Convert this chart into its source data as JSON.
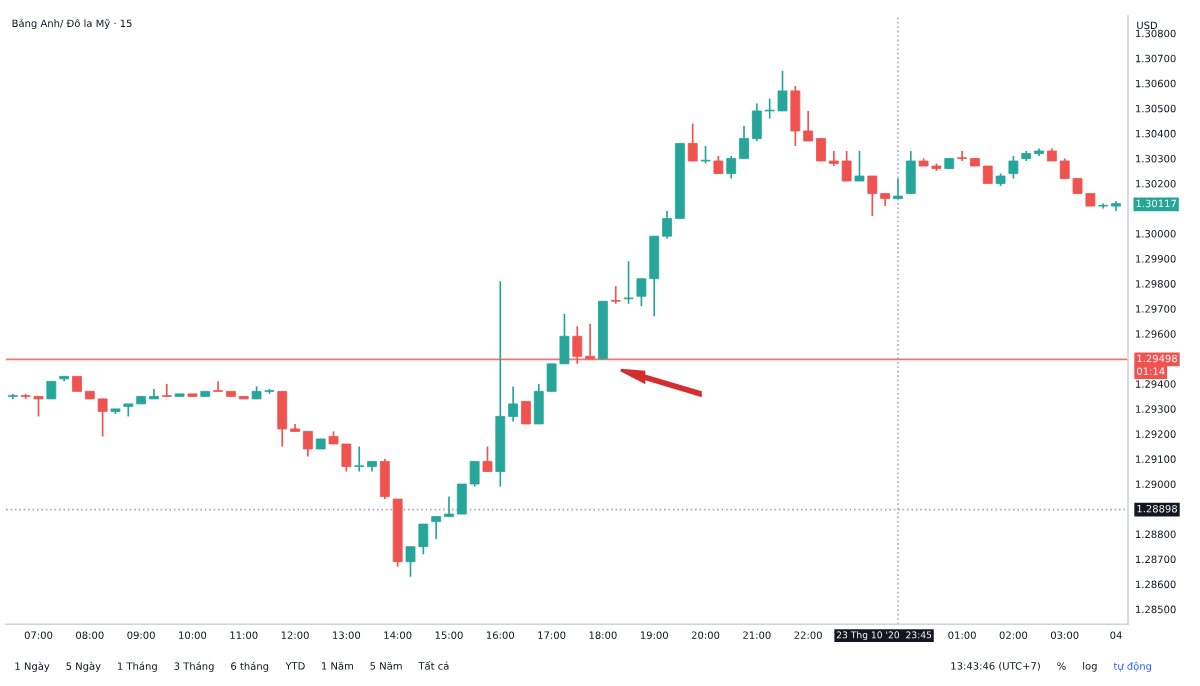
{
  "chart_data": {
    "type": "candlestick",
    "title": "Bảng Anh/ Đô la Mỹ · 15",
    "x": [
      "2020-10-23T06:30",
      "2020-10-23T06:45",
      "2020-10-23T07:00",
      "2020-10-23T07:15",
      "2020-10-23T07:30",
      "2020-10-23T07:45",
      "2020-10-23T08:00",
      "2020-10-23T08:15",
      "2020-10-23T08:30",
      "2020-10-23T08:45",
      "2020-10-23T09:00",
      "2020-10-23T09:15",
      "2020-10-23T09:30",
      "2020-10-23T09:45",
      "2020-10-23T10:00",
      "2020-10-23T10:15",
      "2020-10-23T10:30",
      "2020-10-23T10:45",
      "2020-10-23T11:00",
      "2020-10-23T11:15",
      "2020-10-23T11:30",
      "2020-10-23T11:45",
      "2020-10-23T12:00",
      "2020-10-23T12:15",
      "2020-10-23T12:30",
      "2020-10-23T12:45",
      "2020-10-23T13:00",
      "2020-10-23T13:15",
      "2020-10-23T13:30",
      "2020-10-23T13:45",
      "2020-10-23T14:00",
      "2020-10-23T14:15",
      "2020-10-23T14:30",
      "2020-10-23T14:45",
      "2020-10-23T15:00",
      "2020-10-23T15:15",
      "2020-10-23T15:30",
      "2020-10-23T15:45",
      "2020-10-23T16:00",
      "2020-10-23T16:15",
      "2020-10-23T16:30",
      "2020-10-23T16:45",
      "2020-10-23T17:00",
      "2020-10-23T17:15",
      "2020-10-23T17:30",
      "2020-10-23T17:45",
      "2020-10-23T18:00",
      "2020-10-23T18:15",
      "2020-10-23T18:30",
      "2020-10-23T18:45",
      "2020-10-23T19:00",
      "2020-10-23T19:15",
      "2020-10-23T19:30",
      "2020-10-23T19:45",
      "2020-10-23T20:00",
      "2020-10-23T20:15",
      "2020-10-23T20:30",
      "2020-10-23T20:45",
      "2020-10-23T21:00",
      "2020-10-23T21:15",
      "2020-10-23T21:30",
      "2020-10-23T21:45",
      "2020-10-23T22:00",
      "2020-10-23T22:15",
      "2020-10-23T22:30",
      "2020-10-23T22:45",
      "2020-10-23T23:00",
      "2020-10-23T23:15",
      "2020-10-23T23:30",
      "2020-10-23T23:45",
      "2020-10-24T00:00",
      "2020-10-24T00:15",
      "2020-10-24T00:30",
      "2020-10-24T00:45",
      "2020-10-24T01:00",
      "2020-10-24T01:15",
      "2020-10-24T01:30",
      "2020-10-24T01:45",
      "2020-10-24T02:00",
      "2020-10-24T02:15",
      "2020-10-24T02:30",
      "2020-10-24T02:45",
      "2020-10-24T03:00",
      "2020-10-24T03:15",
      "2020-10-24T03:30",
      "2020-10-24T03:45",
      "2020-10-24T04:00"
    ],
    "ohlc": [
      [
        1.2935,
        1.2936,
        1.2934,
        1.2935
      ],
      [
        1.2935,
        1.2936,
        1.2934,
        1.2935
      ],
      [
        1.2935,
        1.2935,
        1.2927,
        1.2934
      ],
      [
        1.2934,
        1.2941,
        1.2934,
        1.2941
      ],
      [
        1.2942,
        1.2943,
        1.2941,
        1.2943
      ],
      [
        1.2943,
        1.2943,
        1.2937,
        1.2937
      ],
      [
        1.2937,
        1.2937,
        1.2934,
        1.2934
      ],
      [
        1.2934,
        1.2934,
        1.2919,
        1.2929
      ],
      [
        1.2929,
        1.293,
        1.2928,
        1.293
      ],
      [
        1.2931,
        1.2932,
        1.2927,
        1.2932
      ],
      [
        1.2932,
        1.2935,
        1.2932,
        1.2935
      ],
      [
        1.2934,
        1.2938,
        1.2934,
        1.2935
      ],
      [
        1.2935,
        1.294,
        1.2935,
        1.2935
      ],
      [
        1.2935,
        1.2936,
        1.2935,
        1.2936
      ],
      [
        1.2936,
        1.2936,
        1.2935,
        1.2935
      ],
      [
        1.2935,
        1.2937,
        1.2935,
        1.2937
      ],
      [
        1.2937,
        1.2941,
        1.2937,
        1.2937
      ],
      [
        1.2937,
        1.2937,
        1.2935,
        1.2935
      ],
      [
        1.2935,
        1.2935,
        1.2934,
        1.2934
      ],
      [
        1.2934,
        1.2939,
        1.2934,
        1.2937
      ],
      [
        1.2937,
        1.2938,
        1.2936,
        1.2937
      ],
      [
        1.2937,
        1.2937,
        1.2915,
        1.2922
      ],
      [
        1.2922,
        1.2924,
        1.2921,
        1.2921
      ],
      [
        1.2921,
        1.2921,
        1.2911,
        1.2914
      ],
      [
        1.2914,
        1.2918,
        1.2914,
        1.2918
      ],
      [
        1.2919,
        1.2921,
        1.2916,
        1.2916
      ],
      [
        1.2916,
        1.2916,
        1.2905,
        1.2907
      ],
      [
        1.2907,
        1.2915,
        1.2905,
        1.2907
      ],
      [
        1.2907,
        1.2909,
        1.2905,
        1.2909
      ],
      [
        1.2909,
        1.291,
        1.2894,
        1.2895
      ],
      [
        1.2894,
        1.2894,
        1.2867,
        1.2869
      ],
      [
        1.2869,
        1.2875,
        1.2863,
        1.2875
      ],
      [
        1.2875,
        1.2884,
        1.2872,
        1.2884
      ],
      [
        1.2885,
        1.2887,
        1.2878,
        1.2887
      ],
      [
        1.2887,
        1.2895,
        1.2887,
        1.2888
      ],
      [
        1.2888,
        1.29,
        1.2888,
        1.29
      ],
      [
        1.29,
        1.2909,
        1.2899,
        1.2909
      ],
      [
        1.2909,
        1.2915,
        1.2905,
        1.2905
      ],
      [
        1.2905,
        1.2981,
        1.2899,
        1.2927
      ],
      [
        1.2927,
        1.2939,
        1.2925,
        1.2932
      ],
      [
        1.2933,
        1.2933,
        1.2924,
        1.2924
      ],
      [
        1.2924,
        1.294,
        1.2924,
        1.2937
      ],
      [
        1.2937,
        1.2948,
        1.2937,
        1.2948
      ],
      [
        1.2948,
        1.2968,
        1.2948,
        1.2959
      ],
      [
        1.2959,
        1.2963,
        1.2948,
        1.2951
      ],
      [
        1.2951,
        1.2964,
        1.295,
        1.295
      ],
      [
        1.295,
        1.2973,
        1.295,
        1.2973
      ],
      [
        1.2973,
        1.2979,
        1.2972,
        1.2973
      ],
      [
        1.2974,
        1.2989,
        1.2972,
        1.2974
      ],
      [
        1.2975,
        1.2982,
        1.2971,
        1.2982
      ],
      [
        1.2982,
        1.2999,
        1.2967,
        1.2999
      ],
      [
        1.2999,
        1.3009,
        1.2998,
        1.3006
      ],
      [
        1.3006,
        1.3036,
        1.3006,
        1.3036
      ],
      [
        1.3036,
        1.3044,
        1.3029,
        1.3029
      ],
      [
        1.3029,
        1.3035,
        1.3028,
        1.3029
      ],
      [
        1.3029,
        1.3031,
        1.3024,
        1.3024
      ],
      [
        1.3024,
        1.3031,
        1.3022,
        1.303
      ],
      [
        1.303,
        1.3043,
        1.303,
        1.3038
      ],
      [
        1.3038,
        1.3052,
        1.3037,
        1.3049
      ],
      [
        1.3049,
        1.3054,
        1.3046,
        1.3049
      ],
      [
        1.3049,
        1.3065,
        1.3049,
        1.3057
      ],
      [
        1.3057,
        1.3059,
        1.3035,
        1.3041
      ],
      [
        1.3041,
        1.3049,
        1.3037,
        1.3037
      ],
      [
        1.3038,
        1.3038,
        1.3029,
        1.3029
      ],
      [
        1.3029,
        1.3033,
        1.3027,
        1.3028
      ],
      [
        1.3029,
        1.3033,
        1.3021,
        1.3021
      ],
      [
        1.3021,
        1.3033,
        1.3021,
        1.3023
      ],
      [
        1.3023,
        1.3023,
        1.3007,
        1.3016
      ],
      [
        1.3016,
        1.3016,
        1.3011,
        1.3014
      ],
      [
        1.3014,
        1.3022,
        1.3014,
        1.3015
      ],
      [
        1.3016,
        1.3033,
        1.3016,
        1.3029
      ],
      [
        1.3029,
        1.303,
        1.3027,
        1.3027
      ],
      [
        1.3027,
        1.3028,
        1.3025,
        1.3026
      ],
      [
        1.3026,
        1.303,
        1.3026,
        1.303
      ],
      [
        1.303,
        1.3033,
        1.3029,
        1.303
      ],
      [
        1.303,
        1.303,
        1.3027,
        1.3027
      ],
      [
        1.3027,
        1.3027,
        1.302,
        1.302
      ],
      [
        1.302,
        1.3024,
        1.3019,
        1.3023
      ],
      [
        1.3024,
        1.3031,
        1.3022,
        1.3029
      ],
      [
        1.303,
        1.3033,
        1.3029,
        1.3032
      ],
      [
        1.3032,
        1.3034,
        1.3031,
        1.3033
      ],
      [
        1.3033,
        1.3034,
        1.3029,
        1.3029
      ],
      [
        1.3029,
        1.303,
        1.3022,
        1.3022
      ],
      [
        1.3022,
        1.3022,
        1.3016,
        1.3016
      ],
      [
        1.3016,
        1.3016,
        1.3011,
        1.3011
      ],
      [
        1.3011,
        1.3012,
        1.301,
        1.3011
      ],
      [
        1.3011,
        1.3013,
        1.3009,
        1.3012
      ]
    ],
    "colors": [
      "#26a69a",
      "#ef5350",
      "#ef5350",
      "#26a69a",
      "#26a69a",
      "#ef5350",
      "#ef5350",
      "#ef5350",
      "#26a69a",
      "#26a69a",
      "#26a69a",
      "#26a69a",
      "#ef5350",
      "#26a69a",
      "#ef5350",
      "#26a69a",
      "#ef5350",
      "#ef5350",
      "#ef5350",
      "#26a69a",
      "#26a69a",
      "#ef5350",
      "#ef5350",
      "#ef5350",
      "#26a69a",
      "#ef5350",
      "#ef5350",
      "#26a69a",
      "#26a69a",
      "#ef5350",
      "#ef5350",
      "#26a69a",
      "#26a69a",
      "#26a69a",
      "#26a69a",
      "#26a69a",
      "#26a69a",
      "#ef5350",
      "#26a69a",
      "#26a69a",
      "#ef5350",
      "#26a69a",
      "#26a69a",
      "#26a69a",
      "#ef5350",
      "#ef5350",
      "#26a69a",
      "#ef5350",
      "#26a69a",
      "#26a69a",
      "#26a69a",
      "#26a69a",
      "#26a69a",
      "#ef5350",
      "#26a69a",
      "#ef5350",
      "#26a69a",
      "#26a69a",
      "#26a69a",
      "#26a69a",
      "#26a69a",
      "#ef5350",
      "#ef5350",
      "#ef5350",
      "#ef5350",
      "#ef5350",
      "#26a69a",
      "#ef5350",
      "#ef5350",
      "#26a69a",
      "#26a69a",
      "#ef5350",
      "#ef5350",
      "#26a69a",
      "#ef5350",
      "#ef5350",
      "#ef5350",
      "#26a69a",
      "#26a69a",
      "#26a69a",
      "#26a69a",
      "#ef5350",
      "#ef5350",
      "#ef5350",
      "#ef5350",
      "#26a69a",
      "#26a69a"
    ],
    "xlim": [
      "2020-10-23T06:22",
      "2020-10-24T04:14"
    ],
    "xticks": [
      {
        "value": "2020-10-23T07:00",
        "label": "07:00"
      },
      {
        "value": "2020-10-23T08:00",
        "label": "08:00"
      },
      {
        "value": "2020-10-23T09:00",
        "label": "09:00"
      },
      {
        "value": "2020-10-23T10:00",
        "label": "10:00"
      },
      {
        "value": "2020-10-23T11:00",
        "label": "11:00"
      },
      {
        "value": "2020-10-23T12:00",
        "label": "12:00"
      },
      {
        "value": "2020-10-23T13:00",
        "label": "13:00"
      },
      {
        "value": "2020-10-23T14:00",
        "label": "14:00"
      },
      {
        "value": "2020-10-23T15:00",
        "label": "15:00"
      },
      {
        "value": "2020-10-23T16:00",
        "label": "16:00"
      },
      {
        "value": "2020-10-23T17:00",
        "label": "17:00"
      },
      {
        "value": "2020-10-23T18:00",
        "label": "18:00"
      },
      {
        "value": "2020-10-23T19:00",
        "label": "19:00"
      },
      {
        "value": "2020-10-23T20:00",
        "label": "20:00"
      },
      {
        "value": "2020-10-23T21:00",
        "label": "21:00"
      },
      {
        "value": "2020-10-23T22:00",
        "label": "22:00"
      },
      {
        "value": "2020-10-24T01:00",
        "label": "01:00"
      },
      {
        "value": "2020-10-24T02:00",
        "label": "02:00"
      },
      {
        "value": "2020-10-24T03:00",
        "label": "03:00"
      },
      {
        "value": "2020-10-24T04:00",
        "label": "04"
      }
    ],
    "ylim": [
      1.2844,
      1.3087
    ],
    "yticks": [
      {
        "value": 1.285,
        "label": "1.28500"
      },
      {
        "value": 1.286,
        "label": "1.28600"
      },
      {
        "value": 1.287,
        "label": "1.28700"
      },
      {
        "value": 1.288,
        "label": "1.28800"
      },
      {
        "value": 1.29,
        "label": "1.29000"
      },
      {
        "value": 1.291,
        "label": "1.29100"
      },
      {
        "value": 1.292,
        "label": "1.29200"
      },
      {
        "value": 1.293,
        "label": "1.29300"
      },
      {
        "value": 1.294,
        "label": "1.29400"
      },
      {
        "value": 1.296,
        "label": "1.29600"
      },
      {
        "value": 1.297,
        "label": "1.29700"
      },
      {
        "value": 1.298,
        "label": "1.29800"
      },
      {
        "value": 1.299,
        "label": "1.29900"
      },
      {
        "value": 1.3,
        "label": "1.30000"
      },
      {
        "value": 1.302,
        "label": "1.30200"
      },
      {
        "value": 1.303,
        "label": "1.30300"
      },
      {
        "value": 1.304,
        "label": "1.30400"
      },
      {
        "value": 1.305,
        "label": "1.30500"
      },
      {
        "value": 1.306,
        "label": "1.30600"
      },
      {
        "value": 1.307,
        "label": "1.30700"
      },
      {
        "value": 1.308,
        "label": "1.30800"
      }
    ],
    "ref_lines": [
      {
        "axis": "y",
        "value": 1.29498,
        "label": "1.29498",
        "color": "#ef5350",
        "line_style": "solid"
      },
      {
        "axis": "y",
        "value": 1.28898,
        "label": "1.28898",
        "color": "#9598a1",
        "line_style": "dotted"
      },
      {
        "axis": "x",
        "value": "2020-10-23T23:45",
        "label": "23 Thg 10 '20  23:45",
        "color": "#9598a1",
        "line_style": "dotted"
      }
    ],
    "annotations": [
      "USD",
      "01:14",
      "1 Ngày",
      "5 Ngày",
      "1 Tháng",
      "3 Tháng",
      "6 tháng",
      "YTD",
      "1 Năm",
      "5 Năm",
      "Tất cả",
      "13:43:46 (UTC+7)",
      "%",
      "log",
      "tự động",
      {
        "text": "1.30117",
        "x": "2020-10-24T04:00",
        "y": 1.30117
      }
    ],
    "grid": false
  }
}
